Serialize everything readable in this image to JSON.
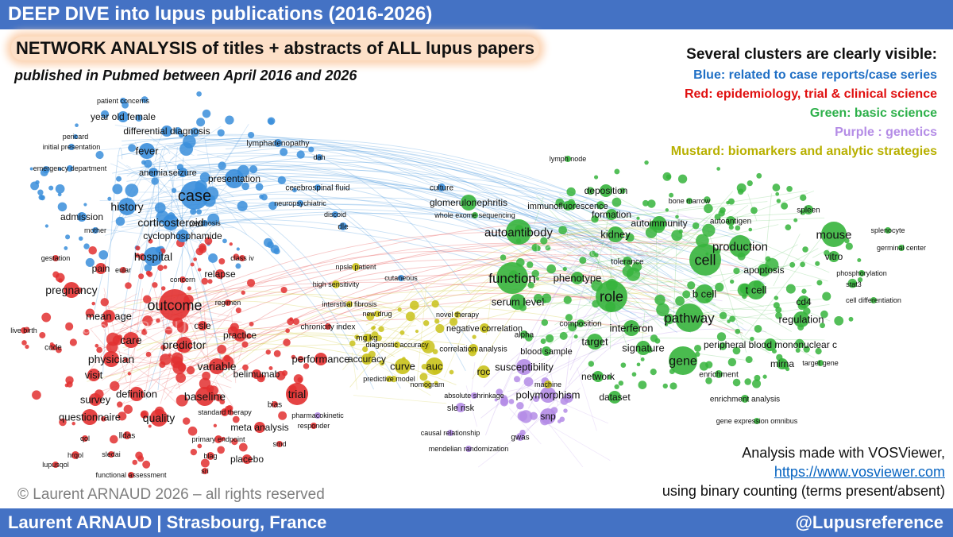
{
  "header": {
    "title": "DEEP DIVE into lupus publications (2016-2026)"
  },
  "headline": "NETWORK ANALYSIS of titles + abstracts of ALL lupus papers",
  "subheadline": "published in Pubmed between April 2016 and 2026",
  "legend": {
    "heading": "Several clusters are clearly visible:",
    "items": [
      {
        "text": "Blue: related to case reports/case series",
        "color": "#1F6FC5"
      },
      {
        "text": "Red: epidemiology, trial & clinical science",
        "color": "#E01010"
      },
      {
        "text": "Green: basic science",
        "color": "#2DB04A"
      },
      {
        "text": "Purple : genetics",
        "color": "#B48CE6"
      },
      {
        "text": "Mustard: biomarkers and analytic strategies",
        "color": "#B8B000"
      }
    ]
  },
  "credits": {
    "line1": "Analysis made with VOSViewer,",
    "link": "https://www.vosviewer.com",
    "line3": "using binary counting (terms present/absent)"
  },
  "copyright": "© Laurent ARNAUD 2026 – all rights reserved",
  "footer": {
    "left": "Laurent ARNAUD | Strasbourg, France",
    "right": "@Lupusreference"
  },
  "colors": {
    "blue": "#3A8EDB",
    "red": "#E23030",
    "green": "#36B43C",
    "purple": "#B48CE6",
    "mustard": "#C9C21A",
    "bar": "#4472C4"
  },
  "watermark": "Laurent ARNAUD",
  "network": {
    "clusters": [
      {
        "name": "blue",
        "terms": [
          "patient concerns",
          "year old female",
          "differential diagnosis",
          "pericard",
          "fever",
          "initial presentation",
          "emergency department",
          "lymphadenopathy",
          "anemia",
          "seizure",
          "presentation",
          "dah",
          "case",
          "cerebrospinal fluid",
          "history",
          "corticosteroid",
          "psychosis",
          "admission",
          "neuropsychiatric",
          "mother",
          "discoid",
          "dle",
          "cyclophosphamide",
          "hospital",
          "cutaneous",
          "culture"
        ]
      },
      {
        "name": "red",
        "terms": [
          "gestation",
          "pain",
          "class iv",
          "eular",
          "pregnancy",
          "relapse",
          "concern",
          "outcome",
          "regimen",
          "mean age",
          "care",
          "csle",
          "live birth",
          "code",
          "predictor",
          "practice",
          "physician",
          "variable",
          "chronicity index",
          "visit",
          "belimumab",
          "performance",
          "definition",
          "baseline",
          "trial",
          "survey",
          "bias",
          "questionnaire",
          "quality",
          "standard therapy",
          "meta analysis",
          "responder",
          "lldas",
          "qol",
          "primary endpoint",
          "smd",
          "hrqol",
          "blag",
          "placebo",
          "lupusqol",
          "functional assessment",
          "sri",
          "sledai"
        ]
      },
      {
        "name": "green",
        "terms": [
          "lymph node",
          "deposition",
          "glomerulonephritis",
          "immunofluorescence",
          "bone marrow",
          "spleen",
          "splenocyte",
          "formation",
          "autoimmunity",
          "autoantigen",
          "autoantibody",
          "kidney",
          "mouse",
          "germinal center",
          "production",
          "cell",
          "vitro",
          "tolerance",
          "apoptosis",
          "function",
          "phenotype",
          "phosphorylation",
          "serum level",
          "role",
          "stat3",
          "b cell",
          "t cell",
          "cd4",
          "cell differentiation",
          "pathway",
          "regulation",
          "composition",
          "interferon",
          "alpha",
          "target",
          "signature",
          "peripheral blood mononuclear c",
          "gene",
          "mirna",
          "target gene",
          "network",
          "enrichment",
          "enrichment analysis",
          "gene expression omnibus",
          "whole exome sequencing",
          "blood sample",
          "dataset"
        ]
      },
      {
        "name": "purple",
        "terms": [
          "susceptibility",
          "polymorphism",
          "snp",
          "gwas",
          "mendelian randomization",
          "causal relationship",
          "sle risk",
          "absolute shrinkage",
          "pharmacokinetic"
        ]
      },
      {
        "name": "mustard",
        "terms": [
          "npsle patient",
          "high sensitivity",
          "interstitial fibrosis",
          "new drug",
          "negative correlation",
          "mg kg",
          "accuracy",
          "correlation analysis",
          "curve",
          "auc",
          "roc",
          "nomogram",
          "diagnostic accuracy",
          "predictive model",
          "novel therapy",
          "machine"
        ]
      }
    ]
  }
}
